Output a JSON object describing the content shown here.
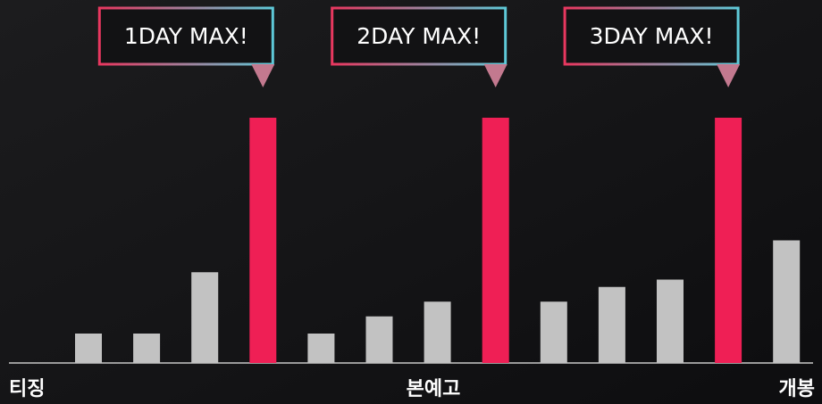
{
  "chart_data": {
    "type": "bar",
    "categories": [
      null,
      null,
      null,
      null,
      null,
      null,
      null,
      null,
      null,
      null,
      null,
      null,
      null
    ],
    "values": [
      12,
      12,
      37,
      100,
      12,
      19,
      25,
      100,
      25,
      31,
      34,
      100,
      50
    ],
    "colors": [
      "#c2c2c2",
      "#c2c2c2",
      "#c2c2c2",
      "#ef1f55",
      "#c2c2c2",
      "#c2c2c2",
      "#c2c2c2",
      "#ef1f55",
      "#c2c2c2",
      "#c2c2c2",
      "#c2c2c2",
      "#ef1f55",
      "#c2c2c2"
    ],
    "callouts": [
      "1DAY MAX!",
      "2DAY MAX!",
      "3DAY MAX!"
    ],
    "phase_labels": [
      "티징",
      "본예고",
      "개봉"
    ],
    "ylim": [
      0,
      100
    ]
  }
}
